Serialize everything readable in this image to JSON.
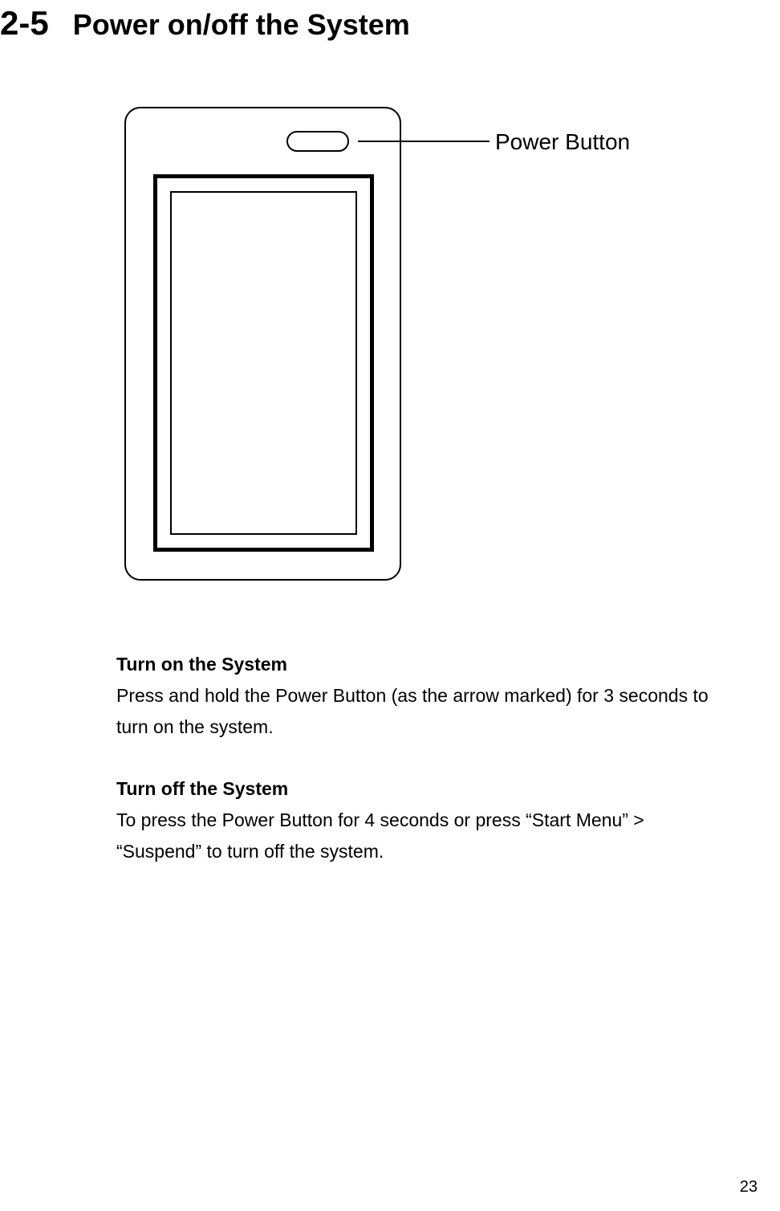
{
  "section": {
    "number": "2-5",
    "title": "Power on/off the System"
  },
  "diagram": {
    "label": "Power Button",
    "colors": {
      "stroke": "#000000",
      "background": "#ffffff"
    }
  },
  "turn_on": {
    "heading": "Turn on the System",
    "body": "Press and hold the Power Button (as the arrow marked) for 3 seconds to turn on the system."
  },
  "turn_off": {
    "heading": "Turn off the System",
    "body": "To press the Power Button for 4 seconds or press “Start Menu” > “Suspend” to turn off the system."
  },
  "page_number": "23",
  "typography": {
    "section_number_fontsize": 42,
    "section_title_fontsize": 36,
    "subsection_title_fontsize": 23,
    "body_fontsize": 23,
    "label_fontsize": 28,
    "page_number_fontsize": 20,
    "font_family": "Arial"
  }
}
